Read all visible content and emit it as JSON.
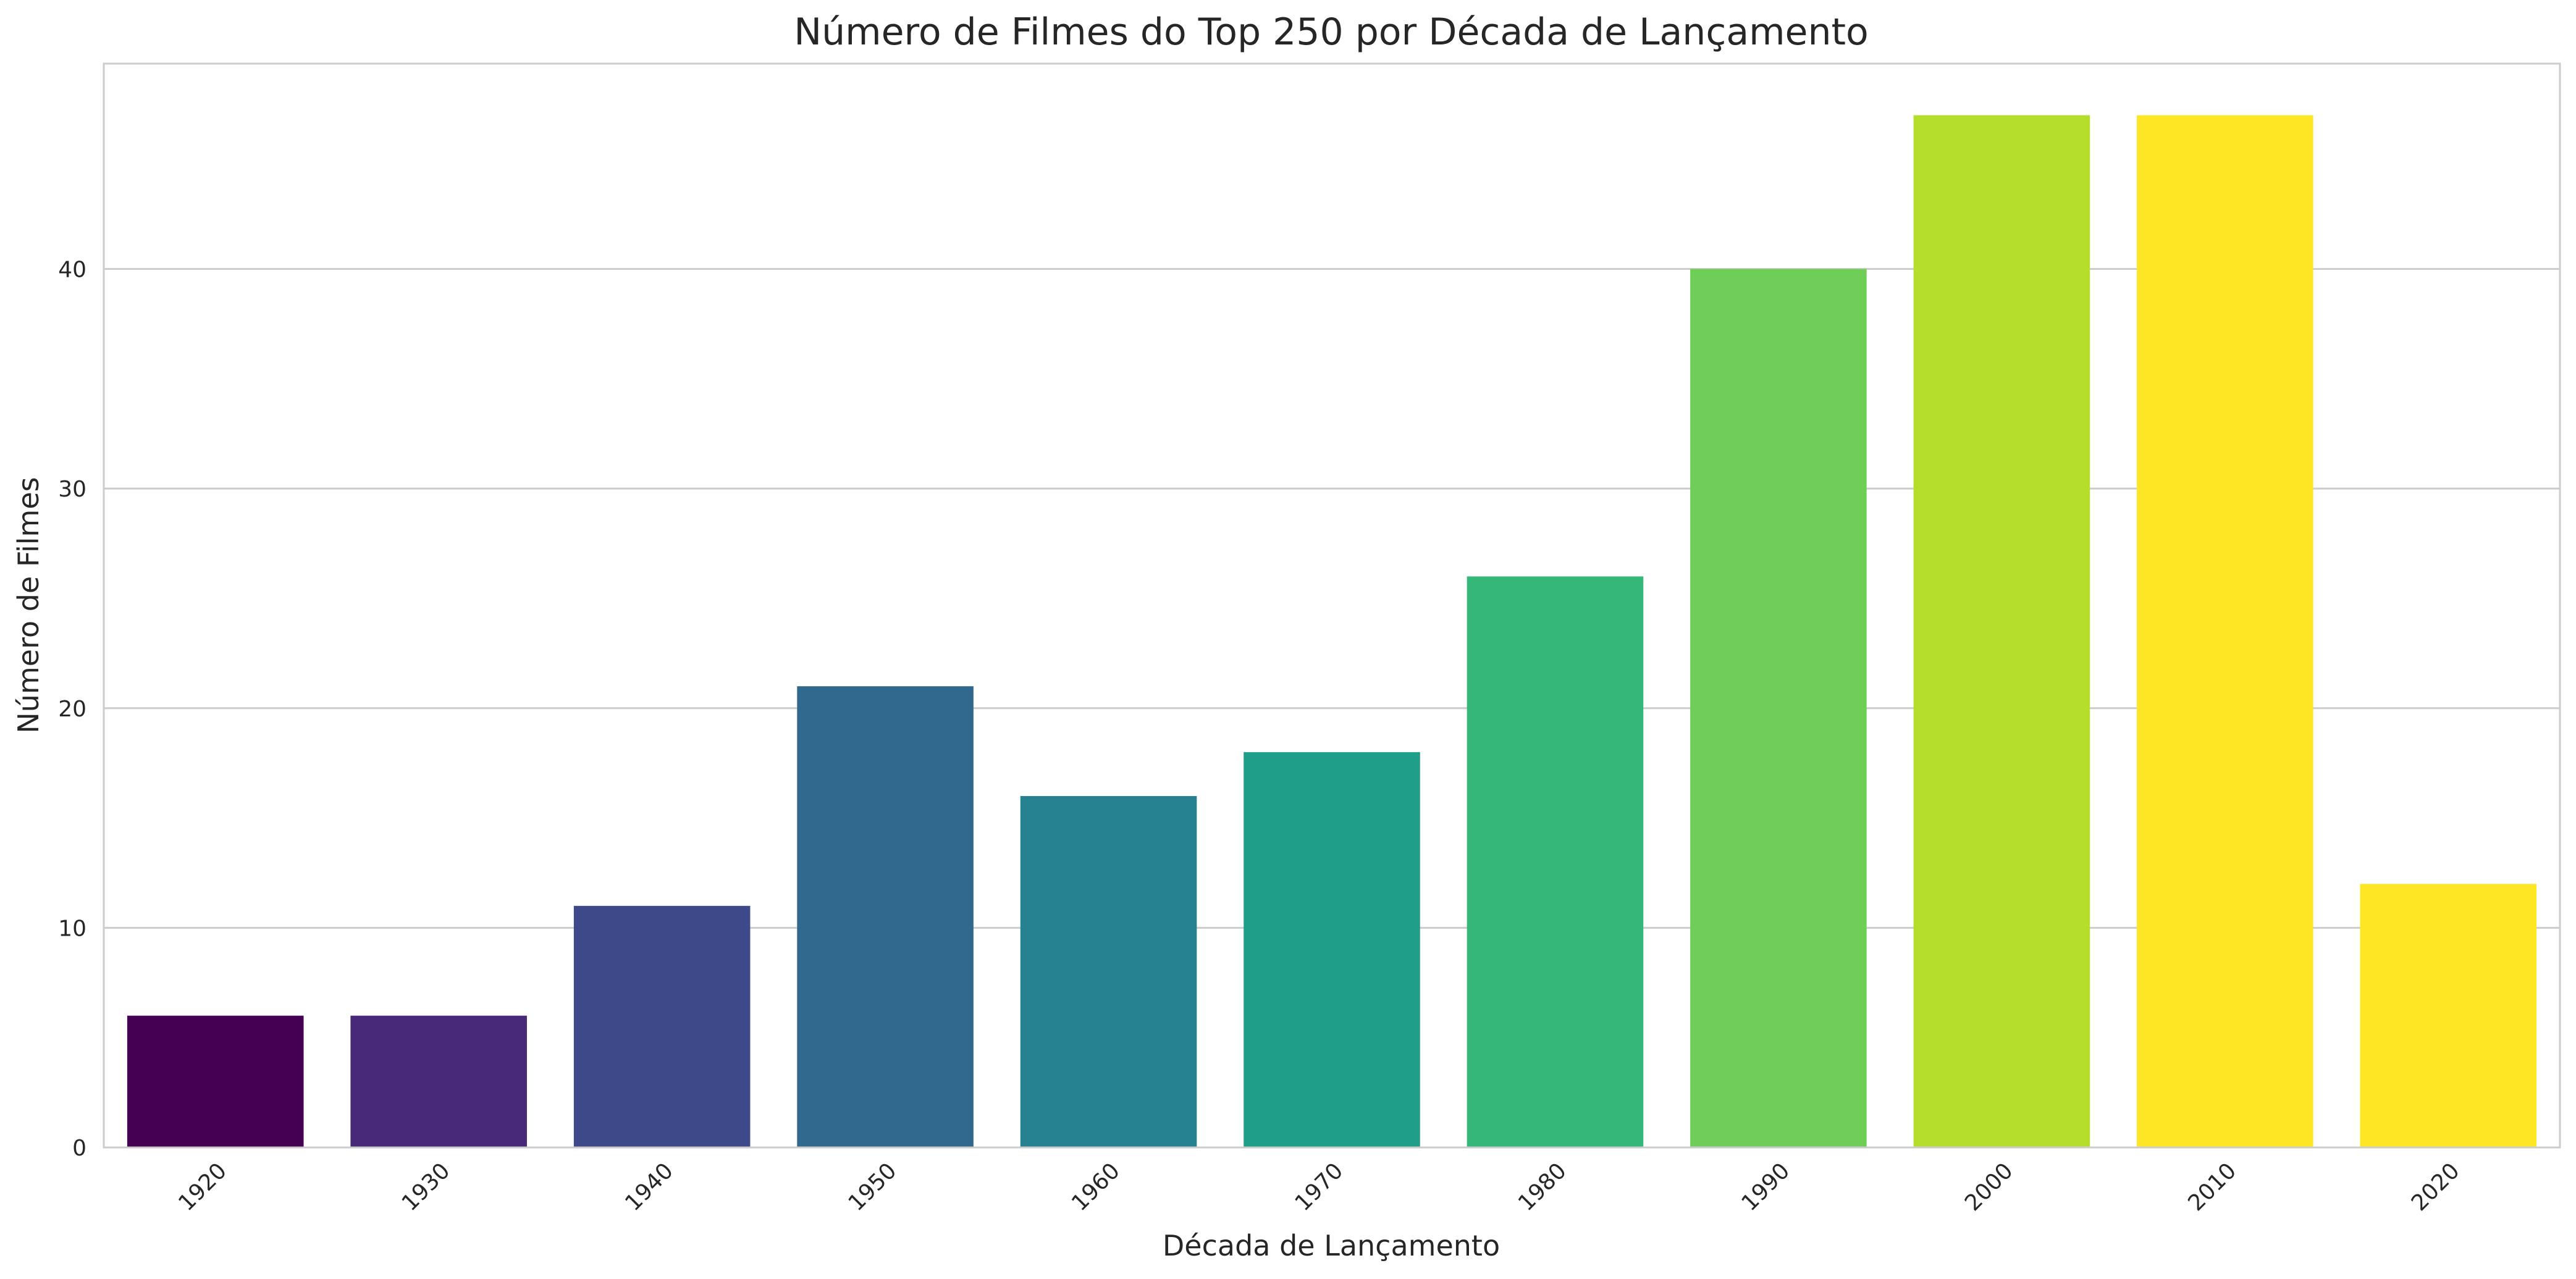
{
  "chart_data": {
    "type": "bar",
    "title": "Número de Filmes do Top 250 por Década de Lançamento",
    "xlabel": "Década de Lançamento",
    "ylabel": "Número de Filmes",
    "categories": [
      "1920",
      "1930",
      "1940",
      "1950",
      "1960",
      "1970",
      "1980",
      "1990",
      "2000",
      "2010",
      "2020"
    ],
    "values": [
      6,
      6,
      11,
      21,
      16,
      18,
      26,
      40,
      47,
      47,
      12
    ],
    "colors": [
      "#440154",
      "#482878",
      "#3e4989",
      "#31688e",
      "#26828e",
      "#1f9e89",
      "#35b779",
      "#6ece58",
      "#b5de2b",
      "#fde725",
      "#fde725"
    ],
    "yticks": [
      0,
      10,
      20,
      30,
      40
    ],
    "ylim": [
      0,
      49.35
    ],
    "grid": "horizontal",
    "legend": "none"
  }
}
